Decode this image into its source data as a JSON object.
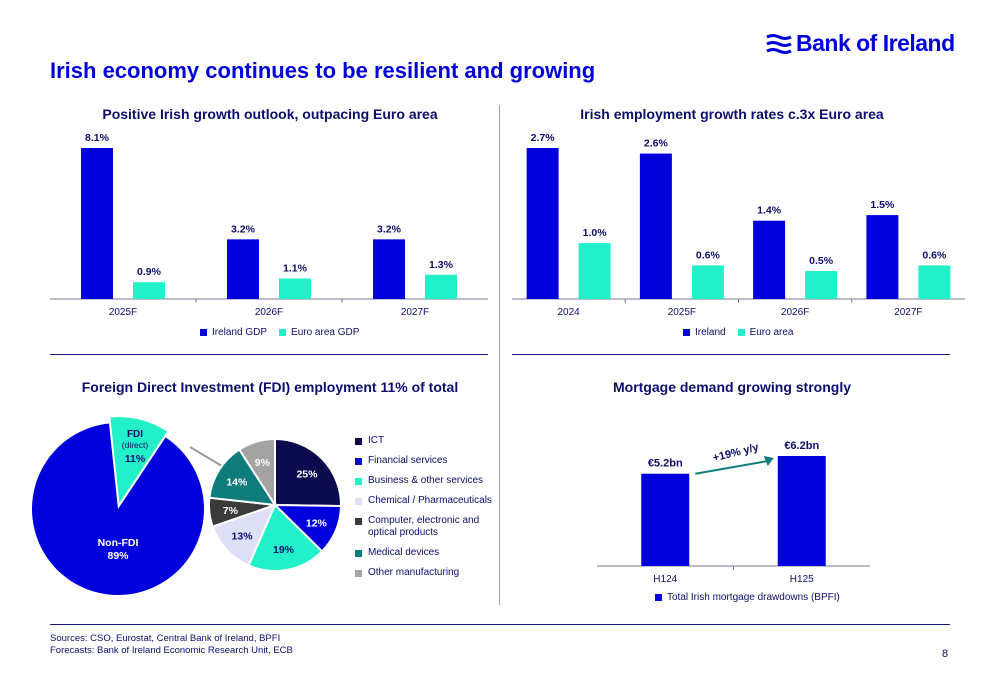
{
  "brand": {
    "name": "Bank of Ireland",
    "logo_color": "#0000dd"
  },
  "page": {
    "title": "Irish economy continues to be resilient and growing",
    "number": "8"
  },
  "footer": {
    "sources": "Sources: CSO, Eurostat, Central Bank of Ireland, BPFI",
    "forecasts": "Forecasts: Bank of Ireland Economic Research Unit, ECB"
  },
  "colors": {
    "primary": "#0000dd",
    "secondary": "#22f0c8",
    "navy": "#0a0a4d",
    "lavender": "#dde0f7",
    "dark_gray": "#3a3a3a",
    "teal": "#0f7c7c",
    "gray": "#a3a3a3"
  },
  "chart_data": [
    {
      "type": "bar",
      "title": "Positive Irish growth outlook, outpacing Euro area",
      "categories": [
        "2025F",
        "2026F",
        "2027F"
      ],
      "series": [
        {
          "name": "Ireland GDP",
          "values": [
            8.1,
            3.2,
            3.2
          ],
          "labels": [
            "8.1%",
            "3.2%",
            "3.2%"
          ],
          "color": "#0000dd"
        },
        {
          "name": "Euro area GDP",
          "values": [
            0.9,
            1.1,
            1.3
          ],
          "labels": [
            "0.9%",
            "1.1%",
            "1.3%"
          ],
          "color": "#22f0c8"
        }
      ],
      "ylim": [
        0,
        8.1
      ],
      "legend": "bottom"
    },
    {
      "type": "bar",
      "title": "Irish employment growth rates c.3x Euro area",
      "categories": [
        "2024",
        "2025F",
        "2026F",
        "2027F"
      ],
      "series": [
        {
          "name": "Ireland",
          "values": [
            2.7,
            2.6,
            1.4,
            1.5
          ],
          "labels": [
            "2.7%",
            "2.6%",
            "1.4%",
            "1.5%"
          ],
          "color": "#0000dd"
        },
        {
          "name": "Euro area",
          "values": [
            1.0,
            0.6,
            0.5,
            0.6
          ],
          "labels": [
            "1.0%",
            "0.6%",
            "0.5%",
            "0.6%"
          ],
          "color": "#22f0c8"
        }
      ],
      "ylim": [
        0,
        2.7
      ],
      "legend": "bottom"
    },
    {
      "type": "pie",
      "title": "Foreign Direct Investment (FDI) employment 11% of total",
      "main_slices": [
        {
          "label": "Non-FDI",
          "value": 89,
          "value_label": "89%",
          "color": "#0000dd"
        },
        {
          "label": "FDI",
          "sublabel": "(direct)",
          "value": 11,
          "value_label": "11%",
          "color": "#22f0c8"
        }
      ],
      "breakdown_slices": [
        {
          "label": "ICT",
          "value": 25,
          "value_label": "25%",
          "color": "#0a0a4d"
        },
        {
          "label": "Financial services",
          "value": 12,
          "value_label": "12%",
          "color": "#0000dd"
        },
        {
          "label": "Business & other services",
          "value": 19,
          "value_label": "19%",
          "color": "#22f0c8"
        },
        {
          "label": "Chemical / Pharmaceuticals",
          "value": 13,
          "value_label": "13%",
          "color": "#dde0f7"
        },
        {
          "label": "Computer, electronic and",
          "label2": "optical products",
          "value": 7,
          "value_label": "7%",
          "color": "#3a3a3a"
        },
        {
          "label": "Medical devices",
          "value": 14,
          "value_label": "14%",
          "color": "#0f7c7c"
        },
        {
          "label": "Other manufacturing",
          "value": 9,
          "value_label": "9%",
          "color": "#a3a3a3"
        }
      ],
      "legend": "right"
    },
    {
      "type": "bar",
      "title": "Mortgage demand growing strongly",
      "categories": [
        "H124",
        "H125"
      ],
      "series": [
        {
          "name": "Total Irish mortgage drawdowns (BPFI)",
          "values": [
            5.2,
            6.2
          ],
          "labels": [
            "€5.2bn",
            "€6.2bn"
          ],
          "color": "#0000dd"
        }
      ],
      "annotation": "+19% y/y",
      "ylim": [
        0,
        6.2
      ],
      "legend": "bottom"
    }
  ]
}
